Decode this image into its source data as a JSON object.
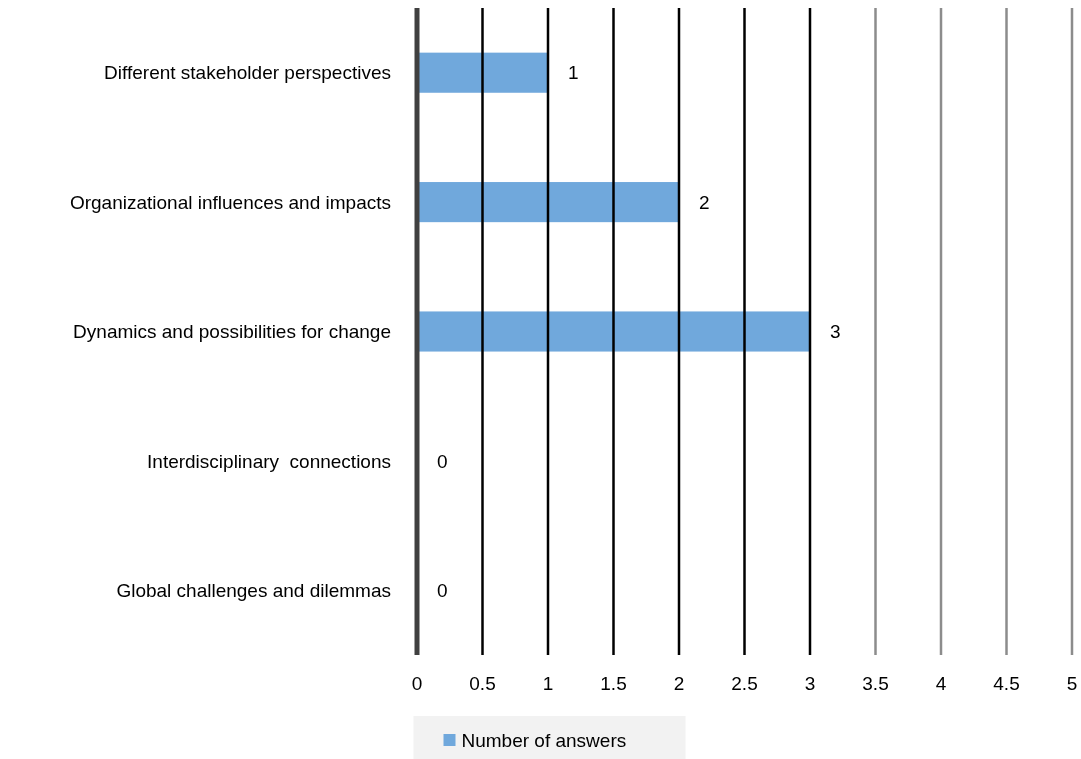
{
  "chart_data": {
    "type": "bar",
    "orientation": "horizontal",
    "categories": [
      "Different stakeholder perspectives",
      "Organizational influences and impacts",
      "Dynamics and possibilities for change",
      "Interdisciplinary  connections",
      "Global challenges and dilemmas"
    ],
    "series": [
      {
        "name": "Number of answers",
        "color": "#70a8dc",
        "values": [
          1,
          2,
          3,
          0,
          0
        ]
      }
    ],
    "xlim": [
      0,
      5
    ],
    "xticks": [
      0,
      0.5,
      1,
      1.5,
      2,
      2.5,
      3,
      3.5,
      4,
      4.5,
      5
    ],
    "grid": "x",
    "data_labels": true,
    "legend": "bottom"
  }
}
